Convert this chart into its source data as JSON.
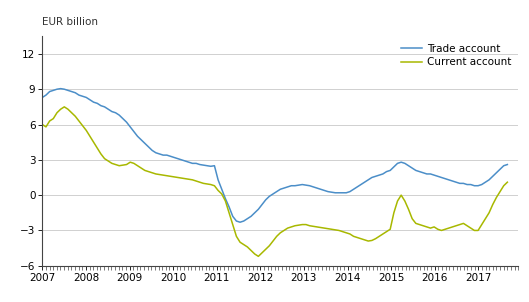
{
  "top_label": "EUR billion",
  "ylim": [
    -6,
    13.5
  ],
  "yticks": [
    -6,
    -3,
    0,
    3,
    6,
    9,
    12
  ],
  "trade_color": "#4B8EC8",
  "current_color": "#A8B800",
  "background_color": "#FFFFFF",
  "grid_color": "#D0D0D0",
  "legend_labels": [
    "Trade account",
    "Current account"
  ],
  "trade_account": [
    8.3,
    8.5,
    8.8,
    8.9,
    9.0,
    9.05,
    9.0,
    8.9,
    8.8,
    8.7,
    8.5,
    8.4,
    8.3,
    8.1,
    7.9,
    7.8,
    7.6,
    7.5,
    7.3,
    7.1,
    7.0,
    6.8,
    6.5,
    6.2,
    5.8,
    5.4,
    5.0,
    4.7,
    4.4,
    4.1,
    3.8,
    3.6,
    3.5,
    3.4,
    3.4,
    3.3,
    3.2,
    3.1,
    3.0,
    2.9,
    2.8,
    2.7,
    2.7,
    2.6,
    2.55,
    2.5,
    2.45,
    2.5,
    1.3,
    0.5,
    -0.3,
    -1.0,
    -1.8,
    -2.2,
    -2.3,
    -2.2,
    -2.0,
    -1.8,
    -1.5,
    -1.2,
    -0.8,
    -0.4,
    -0.1,
    0.1,
    0.3,
    0.5,
    0.6,
    0.7,
    0.8,
    0.8,
    0.85,
    0.9,
    0.85,
    0.8,
    0.7,
    0.6,
    0.5,
    0.4,
    0.3,
    0.25,
    0.2,
    0.2,
    0.2,
    0.2,
    0.3,
    0.5,
    0.7,
    0.9,
    1.1,
    1.3,
    1.5,
    1.6,
    1.7,
    1.8,
    2.0,
    2.1,
    2.4,
    2.7,
    2.8,
    2.7,
    2.5,
    2.3,
    2.1,
    2.0,
    1.9,
    1.8,
    1.8,
    1.7,
    1.6,
    1.5,
    1.4,
    1.3,
    1.2,
    1.1,
    1.0,
    1.0,
    0.9,
    0.9,
    0.8,
    0.8,
    0.9,
    1.1,
    1.3,
    1.6,
    1.9,
    2.2,
    2.5,
    2.6
  ],
  "current_account": [
    6.0,
    5.8,
    6.3,
    6.5,
    7.0,
    7.3,
    7.5,
    7.3,
    7.0,
    6.7,
    6.3,
    5.9,
    5.5,
    5.0,
    4.5,
    4.0,
    3.5,
    3.1,
    2.9,
    2.7,
    2.6,
    2.5,
    2.55,
    2.6,
    2.8,
    2.7,
    2.5,
    2.3,
    2.1,
    2.0,
    1.9,
    1.8,
    1.75,
    1.7,
    1.65,
    1.6,
    1.55,
    1.5,
    1.45,
    1.4,
    1.35,
    1.3,
    1.2,
    1.1,
    1.0,
    0.95,
    0.9,
    0.8,
    0.4,
    0.1,
    -0.5,
    -1.5,
    -2.5,
    -3.5,
    -4.0,
    -4.2,
    -4.4,
    -4.7,
    -5.0,
    -5.2,
    -4.9,
    -4.6,
    -4.3,
    -3.9,
    -3.5,
    -3.2,
    -3.0,
    -2.8,
    -2.7,
    -2.6,
    -2.55,
    -2.5,
    -2.5,
    -2.6,
    -2.65,
    -2.7,
    -2.75,
    -2.8,
    -2.85,
    -2.9,
    -2.95,
    -3.0,
    -3.1,
    -3.2,
    -3.3,
    -3.5,
    -3.6,
    -3.7,
    -3.8,
    -3.9,
    -3.85,
    -3.7,
    -3.5,
    -3.3,
    -3.1,
    -2.9,
    -1.5,
    -0.5,
    0.0,
    -0.5,
    -1.2,
    -2.0,
    -2.4,
    -2.5,
    -2.6,
    -2.7,
    -2.8,
    -2.7,
    -2.9,
    -3.0,
    -2.9,
    -2.8,
    -2.7,
    -2.6,
    -2.5,
    -2.4,
    -2.6,
    -2.8,
    -3.0,
    -3.0,
    -2.5,
    -2.0,
    -1.5,
    -0.8,
    -0.2,
    0.3,
    0.8,
    1.1
  ],
  "n_points": 128,
  "start_year": 2007,
  "x_tick_years": [
    2007,
    2008,
    2009,
    2010,
    2011,
    2012,
    2013,
    2014,
    2015,
    2016,
    2017
  ],
  "xlim_end": 2017.92
}
